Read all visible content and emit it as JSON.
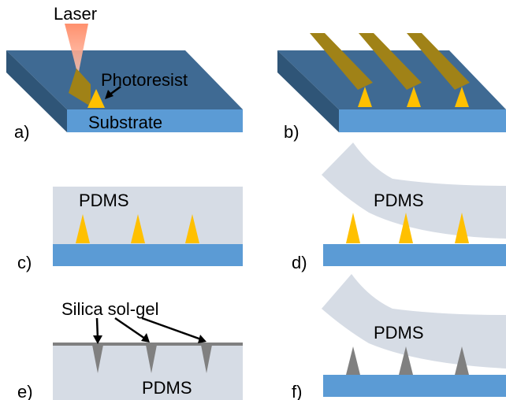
{
  "labels": {
    "laser": "Laser",
    "photoresist": "Photoresist",
    "substrate": "Substrate",
    "pdms": "PDMS",
    "silica": "Silica sol-gel"
  },
  "panels": {
    "a": "a)",
    "b": "b)",
    "c": "c)",
    "d": "d)",
    "e": "e)",
    "f": "f)"
  },
  "colors": {
    "substrate_top": "#3f6a93",
    "substrate_side_left": "#2f5577",
    "substrate_front": "#5b9bd5",
    "photoresist_wall": "#a08217",
    "tip_yellow": "#ffc000",
    "pdms": "#d6dce5",
    "silica": "#808080",
    "laser": "#ff9f84"
  }
}
